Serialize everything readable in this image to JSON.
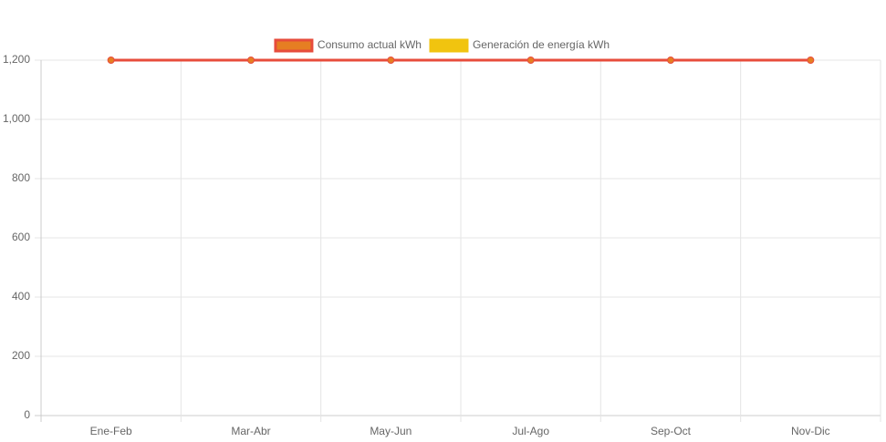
{
  "chart_data": {
    "type": "line",
    "categories": [
      "Ene-Feb",
      "Mar-Abr",
      "May-Jun",
      "Jul-Ago",
      "Sep-Oct",
      "Nov-Dic"
    ],
    "series": [
      {
        "name": "Consumo actual kWh",
        "color": "#e74c3c",
        "point_color": "#e67e22",
        "values": [
          1200,
          1200,
          1200,
          1200,
          1200,
          1200
        ]
      },
      {
        "name": "Generación de energía kWh",
        "color": "#f1c40f",
        "point_color": "#f1c40f",
        "values": [
          null,
          null,
          null,
          null,
          null,
          null
        ]
      }
    ],
    "ylim": [
      0,
      1200
    ],
    "yticks": [
      0,
      200,
      400,
      600,
      800,
      {
        "value": 1000,
        "label": "1,000"
      },
      {
        "value": 1200,
        "label": "1,200"
      }
    ],
    "grid": true,
    "legend": "top"
  }
}
